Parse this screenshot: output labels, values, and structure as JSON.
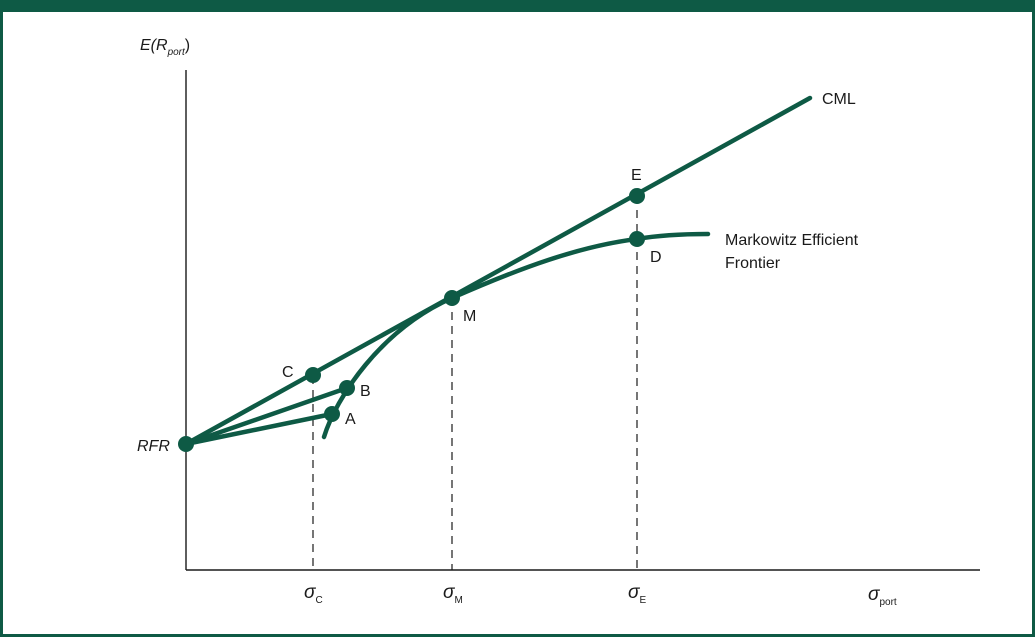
{
  "colors": {
    "frame": "#0e5a45",
    "curve": "#0e5a45",
    "text": "#1a1a1a"
  },
  "y_axis": {
    "label_main": "E(R",
    "label_sub": "port",
    "label_close": ")"
  },
  "x_axis": {
    "label_main": "σ",
    "label_sub": "port"
  },
  "x_ticks": [
    {
      "main": "σ",
      "sub": "C"
    },
    {
      "main": "σ",
      "sub": "M"
    },
    {
      "main": "σ",
      "sub": "E"
    }
  ],
  "lines": {
    "cml": "CML",
    "frontier_line1": "Markowitz Efficient",
    "frontier_line2": "Frontier"
  },
  "points": {
    "rfr": "RFR",
    "a": "A",
    "b": "B",
    "c": "C",
    "m": "M",
    "d": "D",
    "e": "E"
  }
}
